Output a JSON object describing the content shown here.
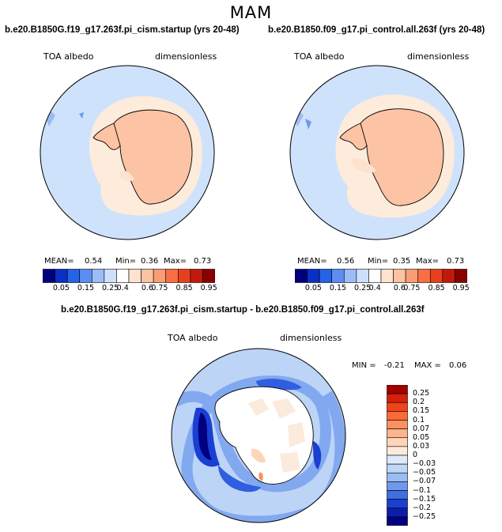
{
  "chart_data": {
    "type": "heatmap",
    "title": "MAM",
    "panels": [
      {
        "title": "b.e20.B1850G.f19_g17.263f.pi_cism.startup (yrs 20-48)",
        "variable": "TOA albedo",
        "units": "dimensionless",
        "stats": {
          "mean_label": "MEAN=",
          "mean": "0.54",
          "min_label": "Min=",
          "min": "0.36",
          "max_label": "Max=",
          "max": "0.73"
        }
      },
      {
        "title": "b.e20.B1850.f09_g17.pi_control.all.263f (yrs 20-48)",
        "variable": "TOA albedo",
        "units": "dimensionless",
        "stats": {
          "mean_label": "MEAN=",
          "mean": "0.56",
          "min_label": "Min=",
          "min": "0.35",
          "max_label": "Max=",
          "max": "0.73"
        }
      },
      {
        "title": "b.e20.B1850G.f19_g17.263f.pi_cism.startup - b.e20.B1850.f09_g17.pi_control.all.263f",
        "variable": "TOA albedo",
        "units": "dimensionless",
        "stats": {
          "min_label": "MIN =",
          "min": "-0.21",
          "max_label": "MAX =",
          "max": "0.06"
        }
      }
    ],
    "colorbar_main": {
      "levels": [
        "0.05",
        "0.15",
        "0.25",
        "0.4",
        "0.6",
        "0.75",
        "0.85",
        "0.95"
      ],
      "colors": [
        "#00007f",
        "#0a2fc4",
        "#2563e6",
        "#5b8ef0",
        "#9bbcf7",
        "#cde0fb",
        "#ffffff",
        "#fde3cf",
        "#fcc2a1",
        "#fb9d74",
        "#f76f43",
        "#e8401d",
        "#c01a0b",
        "#8a0000"
      ]
    },
    "colorbar_diff": {
      "levels": [
        "0.25",
        "0.2",
        "0.15",
        "0.1",
        "0.07",
        "0.05",
        "0.03",
        "0",
        "−0.03",
        "−0.05",
        "−0.07",
        "−0.1",
        "−0.15",
        "−0.2",
        "−0.25"
      ],
      "colors": [
        "#a30000",
        "#d4200c",
        "#f0431c",
        "#fb6a37",
        "#fc9160",
        "#fdb58e",
        "#fdd6b9",
        "#fbebdc",
        "#dceafb",
        "#bfd6f7",
        "#9bbcf3",
        "#6f99ec",
        "#3f6ee2",
        "#1a3fd2",
        "#0a1eaa",
        "#000080"
      ]
    }
  }
}
